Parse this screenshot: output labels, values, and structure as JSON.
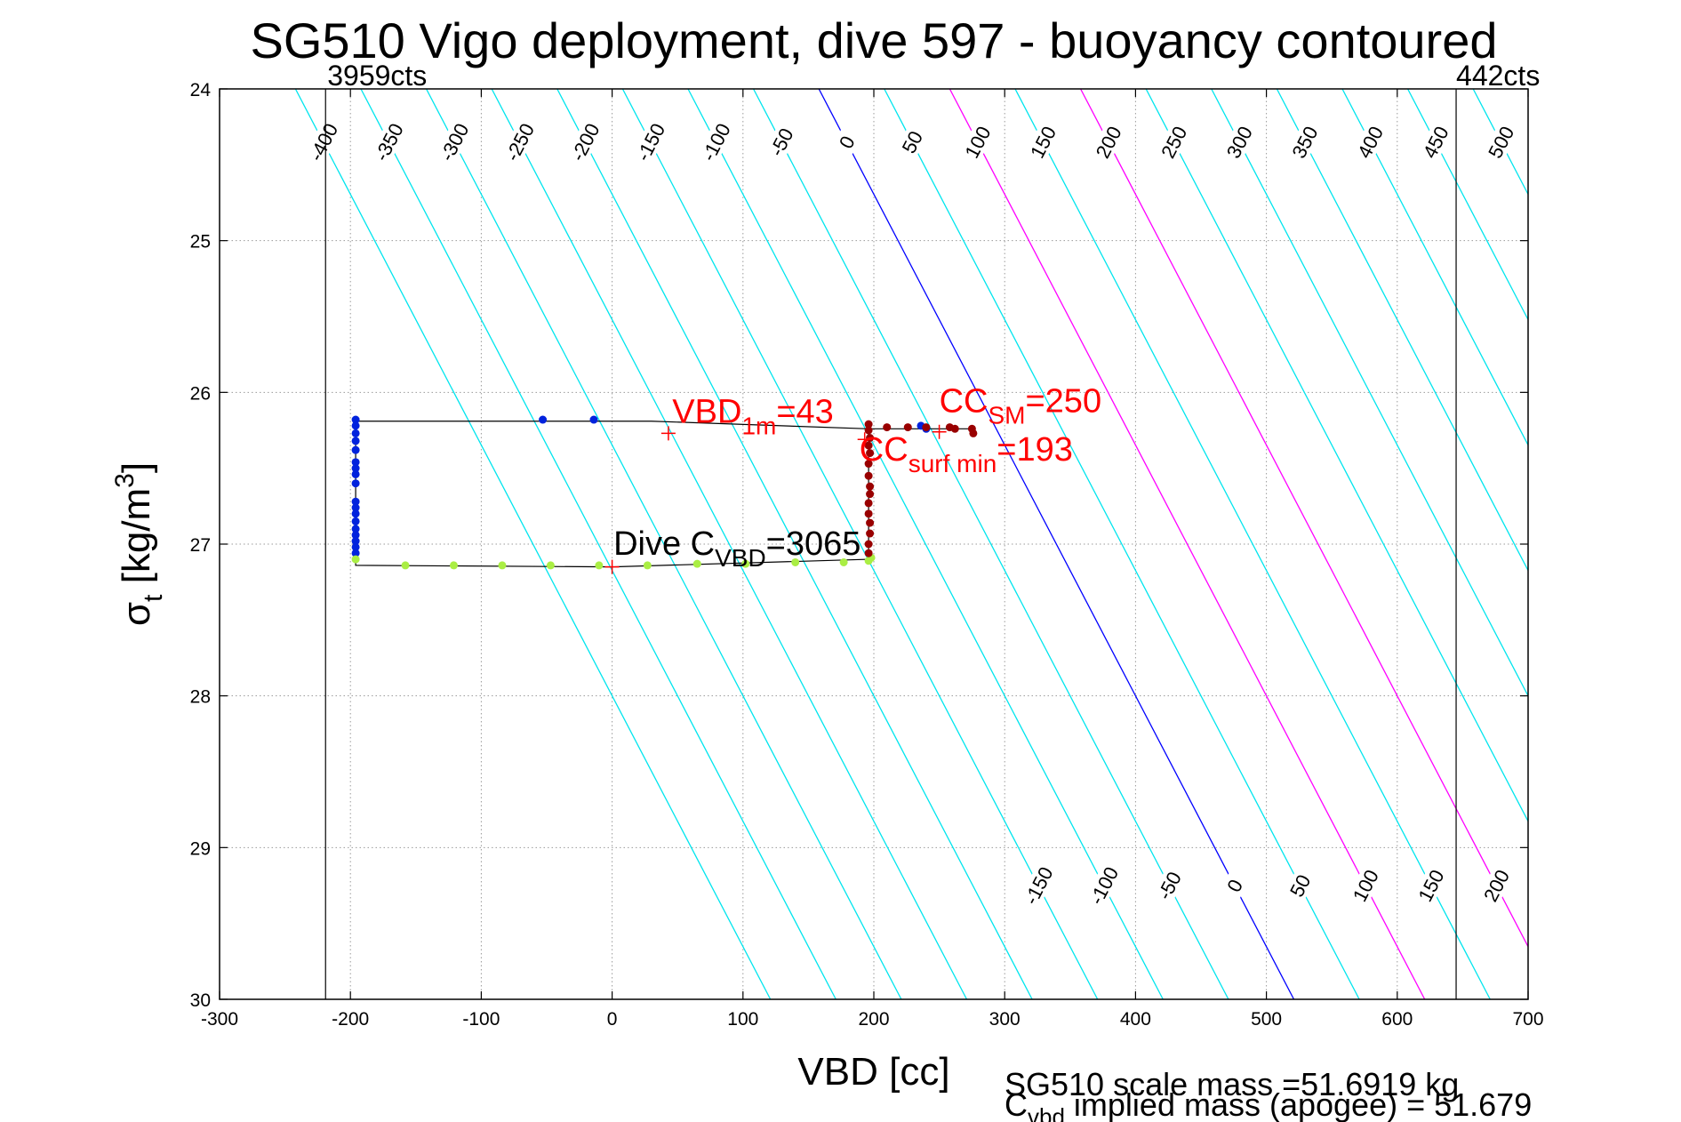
{
  "chart_data": {
    "type": "scatter",
    "title": "SG510 Vigo deployment, dive 597 - buoyancy contoured",
    "xlabel": "VBD [cc]",
    "ylabel": "σ",
    "ylabel_sub": "t",
    "ylabel_unit": " [kg/m",
    "ylabel_sup": "3",
    "ylabel_close": "]",
    "xlim": [
      -300,
      700
    ],
    "ylim": [
      24,
      30
    ],
    "y_reversed": true,
    "grid": true,
    "xticks": [
      "-300",
      "-200",
      "-100",
      "0",
      "100",
      "200",
      "300",
      "400",
      "500",
      "600",
      "700"
    ],
    "yticks": [
      "24",
      "25",
      "26",
      "27",
      "28",
      "29",
      "30"
    ],
    "vbd_limits": [
      {
        "x": -219,
        "label": "3959cts"
      },
      {
        "x": 645,
        "label": "442cts"
      }
    ],
    "contours": {
      "values": [
        -400,
        -350,
        -300,
        -250,
        -200,
        -150,
        -100,
        -50,
        0,
        50,
        100,
        150,
        200,
        250,
        300,
        350,
        400,
        450,
        500
      ],
      "top_labels": [
        "-400",
        "-350",
        "-300",
        "-250",
        "-200",
        "-150",
        "-100",
        "-50",
        "0",
        "50",
        "100",
        "150",
        "200",
        "250",
        "300",
        "350",
        "400",
        "450",
        "500"
      ],
      "bottom_labels": [
        "-150",
        "-100",
        "-50",
        "0",
        "50",
        "100",
        "150",
        "200",
        "250",
        "300",
        "350",
        "400",
        "450",
        "500"
      ],
      "slope_cc_per_sigma": 60.5,
      "zero_x_at_sigma_24": 158,
      "color": "#00e5ee",
      "zero_color": "#0000ff",
      "highlight": [
        {
          "value": 100,
          "color": "#ff00ff"
        },
        {
          "value": 200,
          "color": "#ff00ff"
        }
      ]
    },
    "series": [
      {
        "name": "descent",
        "color": "#0022dd",
        "x": [
          -196,
          -196,
          -196,
          -196,
          -196,
          -196,
          -196,
          -196,
          -196,
          -196,
          -196,
          -196,
          -196,
          -196,
          -196,
          -196,
          -196,
          -196,
          -53,
          -14,
          236,
          240
        ],
        "y": [
          26.18,
          26.22,
          26.27,
          26.32,
          26.38,
          26.46,
          26.5,
          26.54,
          26.6,
          26.72,
          26.76,
          26.8,
          26.85,
          26.9,
          26.94,
          26.98,
          27.02,
          27.06,
          26.18,
          26.18,
          26.22,
          26.24
        ]
      },
      {
        "name": "bottom",
        "color": "#aaee44",
        "x": [
          -196,
          -158,
          -121,
          -84,
          -47,
          -10,
          27,
          65,
          102,
          140,
          177,
          196,
          198
        ],
        "y": [
          27.1,
          27.14,
          27.14,
          27.14,
          27.14,
          27.14,
          27.14,
          27.13,
          27.13,
          27.12,
          27.12,
          27.11,
          27.09
        ]
      },
      {
        "name": "ascent",
        "color": "#990000",
        "x": [
          196,
          196,
          197,
          197,
          196,
          196,
          197,
          197,
          196,
          196,
          197,
          196,
          197,
          196,
          196,
          210,
          226,
          240,
          258,
          262,
          275,
          276
        ],
        "y": [
          27.06,
          27.0,
          26.93,
          26.86,
          26.8,
          26.73,
          26.67,
          26.62,
          26.55,
          26.47,
          26.4,
          26.35,
          26.3,
          26.25,
          26.21,
          26.23,
          26.23,
          26.23,
          26.23,
          26.24,
          26.24,
          26.27
        ]
      }
    ],
    "lines": [
      {
        "name": "dive-path",
        "color": "#000000",
        "x": [
          -196,
          30,
          196,
          196,
          275,
          275
        ],
        "y": [
          26.19,
          26.19,
          26.24,
          26.24,
          26.24,
          26.27
        ]
      },
      {
        "name": "dive-path-bottom",
        "color": "#000000",
        "x": [
          -196,
          -196,
          0,
          196,
          196
        ],
        "y": [
          26.19,
          27.14,
          27.15,
          27.1,
          26.23
        ]
      }
    ],
    "markers": [
      {
        "name": "vbd-1m-marker",
        "x": 43,
        "y": 26.27,
        "color": "#ff0000"
      },
      {
        "name": "cc-sm-marker",
        "x": 250,
        "y": 26.26,
        "color": "#ff0000"
      },
      {
        "name": "cc-surf-min-marker",
        "x": 193,
        "y": 26.31,
        "color": "#ff0000"
      },
      {
        "name": "dive-cvbd-marker",
        "x": 0,
        "y": 27.15,
        "color": "#ff0000"
      }
    ],
    "annotations": [
      {
        "name": "vbd-1m-annotation",
        "main": "VBD",
        "sub": "1m",
        "rest": "=43",
        "color": "#ff0000",
        "x": 46,
        "y": 26.2
      },
      {
        "name": "cc-sm-annotation",
        "main": "CC",
        "sub": "SM",
        "rest": "=250",
        "color": "#ff0000",
        "x": 250,
        "y": 26.13
      },
      {
        "name": "cc-surf-min-annotation",
        "main": "CC",
        "sub": "surf min",
        "rest": "=193",
        "color": "#ff0000",
        "x": 189,
        "y": 26.45
      },
      {
        "name": "dive-cvbd-annotation",
        "main": "Dive C",
        "sub": "VBD",
        "rest": "=3065",
        "color": "#000000",
        "x": 1,
        "y": 27.07
      }
    ]
  },
  "footer": {
    "scale_mass": "SG510 scale mass =51.6919 kg",
    "implied_main": "C",
    "implied_sub": "vbd",
    "implied_rest": " implied mass (apogee) = 51.679"
  }
}
